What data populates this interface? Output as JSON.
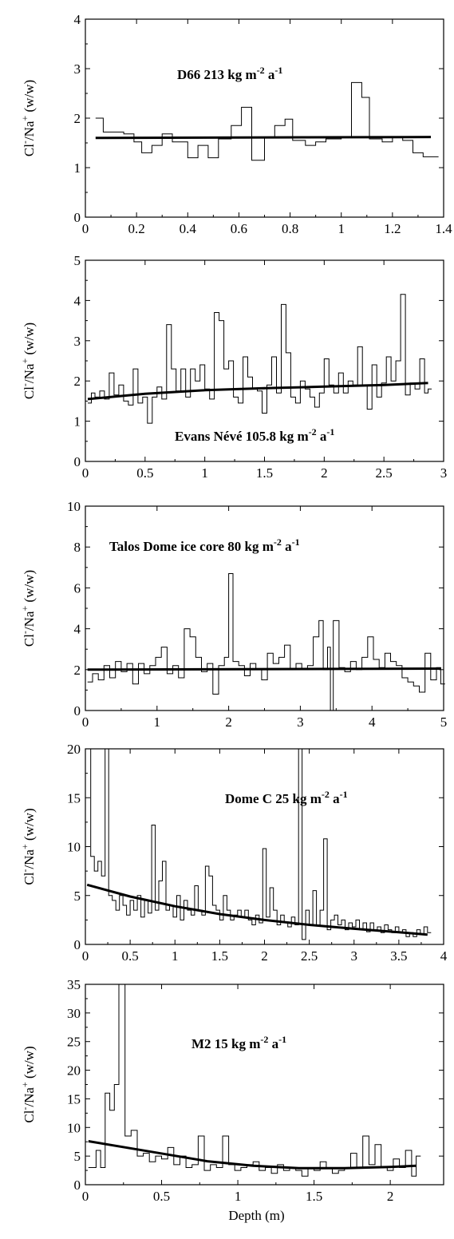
{
  "chart_data": [
    {
      "type": "line",
      "title": "D66   213 kg m-2 a-1",
      "title_parts": {
        "name": "D66   213 kg m",
        "exp1": "-2",
        "mid": " a",
        "exp2": "-1"
      },
      "ylabel_parts": {
        "a": "Cl",
        "b": "-",
        "c": "/Na",
        "d": "+",
        "e": " (w/w)"
      },
      "xlim": [
        0,
        1.4
      ],
      "ylim": [
        0,
        4
      ],
      "xticks": [
        0,
        0.2,
        0.4,
        0.6,
        0.8,
        1,
        1.2,
        1.4
      ],
      "xtick_labels": [
        "0",
        "0.2",
        "0.4",
        "0.6",
        "0.8",
        "1",
        "1.2",
        "1.4"
      ],
      "yticks": [
        0,
        1,
        2,
        3,
        4
      ],
      "ytick_labels": [
        "0",
        "1",
        "2",
        "3",
        "4"
      ],
      "series": [
        {
          "style": "step",
          "x": [
            0.04,
            0.07,
            0.15,
            0.19,
            0.22,
            0.26,
            0.3,
            0.34,
            0.4,
            0.44,
            0.48,
            0.52,
            0.57,
            0.61,
            0.65,
            0.7,
            0.74,
            0.78,
            0.81,
            0.86,
            0.9,
            0.94,
            1.0,
            1.04,
            1.08,
            1.11,
            1.16,
            1.2,
            1.24,
            1.28,
            1.32,
            1.35
          ],
          "y": [
            2.0,
            1.72,
            1.68,
            1.52,
            1.3,
            1.45,
            1.68,
            1.52,
            1.2,
            1.45,
            1.2,
            1.58,
            1.85,
            2.22,
            1.15,
            1.6,
            1.85,
            1.98,
            1.55,
            1.45,
            1.52,
            1.58,
            1.62,
            2.72,
            2.42,
            1.58,
            1.52,
            1.62,
            1.55,
            1.3,
            1.22,
            1.22
          ]
        },
        {
          "style": "trend",
          "x": [
            0.04,
            1.35
          ],
          "y": [
            1.6,
            1.62
          ]
        }
      ]
    },
    {
      "type": "line",
      "title": "Evans Névé   105.8 kg m-2 a-1",
      "title_parts": {
        "name": "Evans Névé   105.8 kg m",
        "exp1": "-2",
        "mid": " a",
        "exp2": "-1"
      },
      "ylabel_parts": {
        "a": "Cl",
        "b": "-",
        "c": "/Na",
        "d": "+",
        "e": " (w/w)"
      },
      "xlim": [
        0,
        3
      ],
      "ylim": [
        0,
        5
      ],
      "xticks": [
        0,
        0.5,
        1,
        1.5,
        2,
        2.5,
        3
      ],
      "xtick_labels": [
        "0",
        "0.5",
        "1",
        "1.5",
        "2",
        "2.5",
        "3"
      ],
      "yticks": [
        0,
        1,
        2,
        3,
        4,
        5
      ],
      "ytick_labels": [
        "0",
        "1",
        "2",
        "3",
        "4",
        "5"
      ],
      "series": [
        {
          "style": "step",
          "x": [
            0.02,
            0.05,
            0.08,
            0.12,
            0.16,
            0.2,
            0.24,
            0.28,
            0.32,
            0.36,
            0.4,
            0.44,
            0.48,
            0.52,
            0.56,
            0.6,
            0.64,
            0.68,
            0.72,
            0.76,
            0.8,
            0.84,
            0.88,
            0.92,
            0.96,
            1.0,
            1.04,
            1.08,
            1.12,
            1.16,
            1.2,
            1.24,
            1.28,
            1.32,
            1.36,
            1.4,
            1.44,
            1.48,
            1.52,
            1.56,
            1.6,
            1.64,
            1.68,
            1.72,
            1.76,
            1.8,
            1.84,
            1.88,
            1.92,
            1.96,
            2.0,
            2.04,
            2.08,
            2.12,
            2.16,
            2.2,
            2.24,
            2.28,
            2.32,
            2.36,
            2.4,
            2.44,
            2.48,
            2.52,
            2.56,
            2.6,
            2.64,
            2.68,
            2.72,
            2.76,
            2.8,
            2.84,
            2.87
          ],
          "y": [
            1.45,
            1.7,
            1.6,
            1.75,
            1.55,
            2.2,
            1.65,
            1.9,
            1.5,
            1.4,
            2.3,
            1.45,
            1.6,
            0.95,
            1.6,
            1.85,
            1.55,
            3.4,
            2.3,
            1.75,
            2.3,
            1.6,
            2.3,
            2.0,
            2.4,
            1.8,
            1.55,
            3.7,
            3.5,
            2.3,
            2.5,
            1.6,
            1.45,
            2.6,
            2.1,
            1.8,
            1.75,
            1.2,
            1.9,
            2.6,
            1.7,
            3.9,
            2.7,
            1.6,
            1.45,
            2.0,
            1.8,
            1.6,
            1.35,
            1.7,
            2.55,
            1.9,
            1.7,
            2.2,
            1.7,
            2.0,
            1.9,
            2.85,
            1.9,
            1.3,
            2.4,
            1.6,
            1.95,
            2.6,
            2.0,
            2.5,
            4.15,
            1.65,
            1.95,
            1.8,
            2.55,
            1.7,
            1.8
          ]
        },
        {
          "style": "trend",
          "x": [
            0.02,
            0.5,
            1.0,
            1.5,
            2.0,
            2.5,
            2.87
          ],
          "y": [
            1.55,
            1.68,
            1.77,
            1.82,
            1.86,
            1.9,
            1.95
          ]
        }
      ]
    },
    {
      "type": "line",
      "title": "Talos Dome ice core 80 kg m-2 a-1",
      "title_parts": {
        "name": "Talos Dome ice core 80 kg m",
        "exp1": "-2",
        "mid": " a",
        "exp2": "-1"
      },
      "ylabel_parts": {
        "a": "Cl",
        "b": "-",
        "c": "/Na",
        "d": "+",
        "e": " (w/w)"
      },
      "xlim": [
        0,
        5
      ],
      "ylim": [
        0,
        10
      ],
      "xticks": [
        0,
        1,
        2,
        3,
        4,
        5
      ],
      "xtick_labels": [
        "0",
        "1",
        "2",
        "3",
        "4",
        "5"
      ],
      "yticks": [
        0,
        2,
        4,
        6,
        8,
        10
      ],
      "ytick_labels": [
        "0",
        "2",
        "4",
        "6",
        "8",
        "10"
      ],
      "series": [
        {
          "style": "step",
          "x": [
            0.03,
            0.1,
            0.18,
            0.26,
            0.34,
            0.42,
            0.5,
            0.58,
            0.66,
            0.74,
            0.82,
            0.9,
            0.98,
            1.06,
            1.14,
            1.22,
            1.3,
            1.38,
            1.46,
            1.54,
            1.62,
            1.7,
            1.78,
            1.86,
            1.94,
            2.0,
            2.06,
            2.14,
            2.22,
            2.3,
            2.38,
            2.46,
            2.54,
            2.62,
            2.7,
            2.78,
            2.86,
            2.94,
            3.02,
            3.1,
            3.18,
            3.26,
            3.32,
            3.38,
            3.42,
            3.46,
            3.54,
            3.62,
            3.7,
            3.78,
            3.86,
            3.94,
            4.02,
            4.1,
            4.18,
            4.26,
            4.34,
            4.42,
            4.5,
            4.58,
            4.66,
            4.74,
            4.82,
            4.9,
            4.96
          ],
          "y": [
            1.4,
            1.8,
            1.5,
            2.2,
            1.6,
            2.4,
            1.9,
            2.3,
            1.3,
            2.3,
            1.8,
            2.2,
            2.6,
            3.1,
            1.8,
            2.2,
            1.6,
            4.0,
            3.6,
            2.6,
            1.9,
            2.3,
            0.8,
            2.2,
            2.6,
            6.7,
            2.4,
            2.2,
            1.7,
            2.3,
            2.0,
            1.5,
            2.8,
            2.3,
            2.6,
            3.2,
            2.0,
            2.3,
            2.0,
            2.2,
            3.6,
            4.4,
            2.0,
            3.1,
            0.0,
            4.4,
            2.1,
            1.9,
            2.4,
            2.0,
            2.6,
            3.6,
            2.5,
            2.1,
            2.8,
            2.4,
            2.2,
            1.6,
            1.4,
            1.2,
            0.9,
            2.8,
            1.5,
            2.1,
            1.3
          ]
        },
        {
          "style": "trend",
          "x": [
            0.03,
            4.96
          ],
          "y": [
            2.0,
            2.05
          ]
        }
      ]
    },
    {
      "type": "line",
      "title": "Dome C   25 kg m-2 a-1",
      "title_parts": {
        "name": "Dome C   25 kg m",
        "exp1": "-2",
        "mid": " a",
        "exp2": "-1"
      },
      "ylabel_parts": {
        "a": "Cl",
        "b": "-",
        "c": "/Na",
        "d": "+",
        "e": " (w/w)"
      },
      "xlim": [
        0,
        4
      ],
      "ylim": [
        0,
        20
      ],
      "xticks": [
        0,
        0.5,
        1,
        1.5,
        2,
        2.5,
        3,
        3.5,
        4
      ],
      "xtick_labels": [
        "0",
        "0.5",
        "1",
        "1.5",
        "2",
        "2.5",
        "3",
        "3.5",
        "4"
      ],
      "yticks": [
        0,
        5,
        10,
        15,
        20
      ],
      "ytick_labels": [
        "0",
        "5",
        "10",
        "15",
        "20"
      ],
      "series": [
        {
          "style": "step",
          "x": [
            0.02,
            0.06,
            0.1,
            0.14,
            0.18,
            0.22,
            0.26,
            0.3,
            0.34,
            0.38,
            0.42,
            0.46,
            0.5,
            0.54,
            0.58,
            0.62,
            0.66,
            0.7,
            0.74,
            0.78,
            0.82,
            0.86,
            0.9,
            0.94,
            0.98,
            1.02,
            1.06,
            1.1,
            1.14,
            1.18,
            1.22,
            1.26,
            1.3,
            1.34,
            1.38,
            1.42,
            1.46,
            1.5,
            1.54,
            1.58,
            1.62,
            1.66,
            1.7,
            1.74,
            1.78,
            1.82,
            1.86,
            1.9,
            1.94,
            1.98,
            2.02,
            2.06,
            2.1,
            2.14,
            2.18,
            2.22,
            2.26,
            2.3,
            2.34,
            2.38,
            2.42,
            2.46,
            2.5,
            2.54,
            2.58,
            2.62,
            2.66,
            2.7,
            2.74,
            2.78,
            2.82,
            2.86,
            2.9,
            2.94,
            2.98,
            3.02,
            3.06,
            3.1,
            3.14,
            3.18,
            3.22,
            3.26,
            3.3,
            3.34,
            3.38,
            3.42,
            3.46,
            3.5,
            3.54,
            3.58,
            3.62,
            3.66,
            3.7,
            3.74,
            3.78,
            3.82
          ],
          "y": [
            20,
            9,
            7.5,
            8.5,
            7,
            20,
            5,
            4.5,
            3.5,
            5,
            4,
            3,
            4.5,
            3.5,
            5,
            2.8,
            4.5,
            3.2,
            12.2,
            3.5,
            6.5,
            8.5,
            3.5,
            4,
            2.8,
            5,
            2.5,
            4.5,
            3.5,
            3,
            6,
            3.5,
            3,
            8,
            7,
            4,
            3.5,
            2.5,
            5,
            3.5,
            2.5,
            3,
            3.5,
            2.8,
            3.5,
            2.5,
            2,
            3,
            2.2,
            9.8,
            2.8,
            5.8,
            3.5,
            2,
            3,
            2.2,
            1.8,
            2.8,
            2,
            20,
            0.5,
            3.5,
            2,
            5.5,
            2,
            3.5,
            10.8,
            1.5,
            2.5,
            3,
            2,
            2.5,
            1.5,
            2.2,
            1.8,
            2.5,
            1.5,
            2.2,
            1.3,
            2.2,
            1.5,
            1.8,
            1.2,
            2,
            1.5,
            1.2,
            1.8,
            1.2,
            1.5,
            0.8,
            1.2,
            0.8,
            1.5,
            1,
            1.8,
            1.2
          ]
        },
        {
          "style": "trend",
          "x": [
            0.02,
            0.5,
            1.0,
            1.5,
            2.0,
            2.5,
            3.0,
            3.5,
            3.82
          ],
          "y": [
            6.1,
            4.9,
            3.9,
            3.1,
            2.5,
            2.0,
            1.6,
            1.25,
            1.0
          ]
        }
      ]
    },
    {
      "type": "line",
      "title": "M2  15 kg m-2 a-1",
      "title_parts": {
        "name": "M2  15 kg m",
        "exp1": "-2",
        "mid": " a",
        "exp2": "-1"
      },
      "ylabel_parts": {
        "a": "Cl",
        "b": "-",
        "c": "/Na",
        "d": "+",
        "e": " (w/w)"
      },
      "xlabel": "Depth (m)",
      "xlim": [
        0,
        2.35
      ],
      "ylim": [
        0,
        35
      ],
      "xticks": [
        0,
        0.5,
        1,
        1.5,
        2
      ],
      "xtick_labels": [
        "0",
        "0.5",
        "1",
        "1.5",
        "2"
      ],
      "yticks": [
        0,
        5,
        10,
        15,
        20,
        25,
        30,
        35
      ],
      "ytick_labels": [
        "0",
        "5",
        "10",
        "15",
        "20",
        "25",
        "30",
        "35"
      ],
      "series": [
        {
          "style": "step",
          "x": [
            0.02,
            0.07,
            0.1,
            0.13,
            0.16,
            0.19,
            0.22,
            0.26,
            0.3,
            0.34,
            0.38,
            0.42,
            0.46,
            0.5,
            0.54,
            0.58,
            0.62,
            0.66,
            0.7,
            0.74,
            0.78,
            0.82,
            0.86,
            0.9,
            0.94,
            0.98,
            1.02,
            1.06,
            1.1,
            1.14,
            1.18,
            1.22,
            1.26,
            1.3,
            1.34,
            1.38,
            1.42,
            1.46,
            1.5,
            1.54,
            1.58,
            1.62,
            1.66,
            1.7,
            1.74,
            1.78,
            1.82,
            1.86,
            1.9,
            1.94,
            1.98,
            2.02,
            2.06,
            2.1,
            2.14,
            2.17
          ],
          "y": [
            3,
            6,
            3,
            16,
            13,
            17.5,
            35,
            8.5,
            9.5,
            5,
            5.5,
            4,
            5,
            4.5,
            6.5,
            3.5,
            5,
            3,
            3.5,
            8.5,
            2.5,
            3.5,
            3,
            8.5,
            3.5,
            2.5,
            3,
            3.5,
            4,
            2.5,
            3,
            2,
            3.5,
            2.5,
            3,
            2.5,
            1.5,
            3,
            2.5,
            4,
            3,
            2,
            2.5,
            3,
            5.5,
            3,
            8.5,
            3.5,
            7,
            3,
            2.5,
            4.5,
            3,
            6,
            1.5,
            5
          ]
        },
        {
          "style": "trend",
          "x": [
            0.02,
            0.4,
            0.8,
            1.1,
            1.4,
            1.7,
            2.0,
            2.17
          ],
          "y": [
            7.6,
            5.9,
            4.1,
            3.3,
            2.9,
            2.9,
            3.1,
            3.3
          ]
        }
      ]
    }
  ]
}
